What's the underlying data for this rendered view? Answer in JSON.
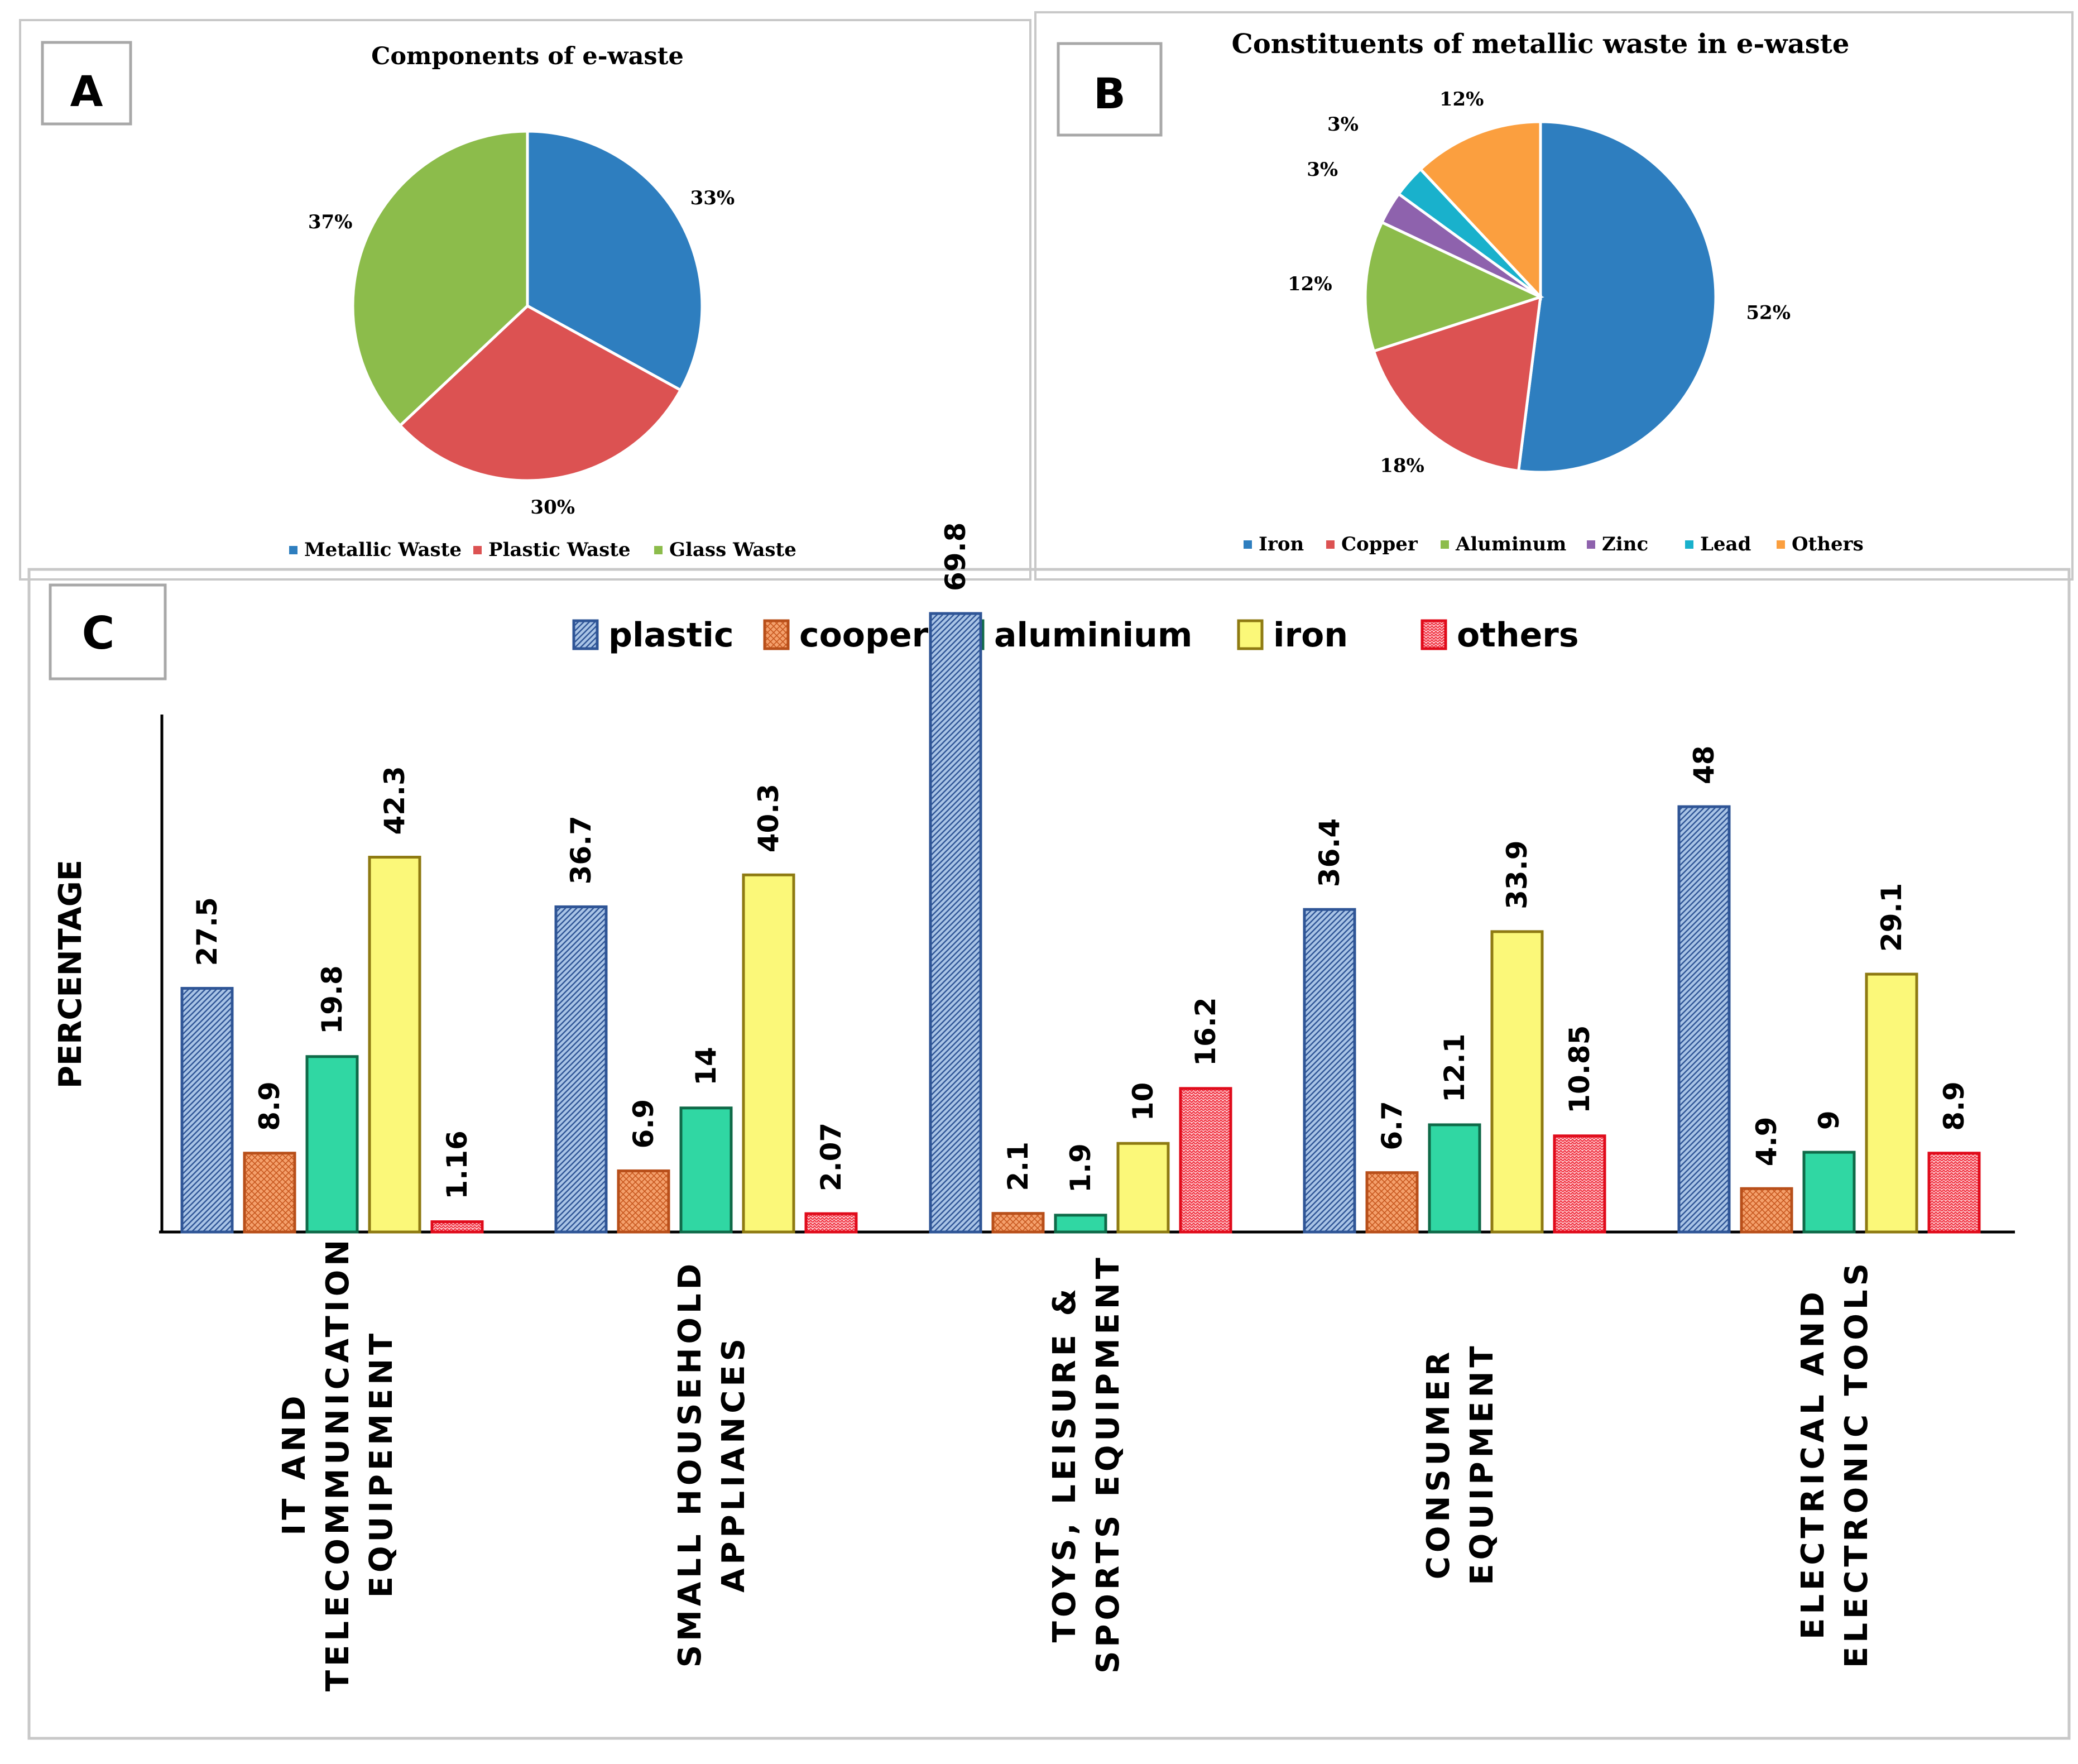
{
  "chart_data": [
    {
      "panel": "A",
      "type": "pie",
      "title": "Components of e-waste",
      "categories": [
        "Metallic Waste",
        "Plastic Waste",
        "Glass Waste"
      ],
      "values": [
        33,
        30,
        37
      ],
      "labels": [
        "33%",
        "30%",
        "37%"
      ],
      "colors": [
        "#2e7ebf",
        "#dc5252",
        "#8cbc4b"
      ],
      "legend": "bottom"
    },
    {
      "panel": "B",
      "type": "pie",
      "title": "Constituents of metallic waste in e-waste",
      "categories": [
        "Iron",
        "Copper",
        "Aluminum",
        "Zinc",
        "Lead",
        "Others"
      ],
      "values": [
        52,
        18,
        12,
        3,
        3,
        12
      ],
      "labels": [
        "52%",
        "18%",
        "12%",
        "3%",
        "3%",
        "12%"
      ],
      "colors": [
        "#2e7ebf",
        "#dc5252",
        "#8cbc4b",
        "#8e62ad",
        "#19b1cc",
        "#fb9f3f"
      ],
      "legend": "bottom"
    },
    {
      "panel": "C",
      "type": "bar",
      "ylabel": "PERCENTAGE",
      "categories": [
        [
          "IT AND",
          "TELECOMMUNICATION",
          "EQUIPEMENT"
        ],
        [
          "SMALL HOUSEHOLD",
          "APPLIANCES"
        ],
        [
          "TOYS, LEISURE &",
          "SPORTS EQUIPMENT"
        ],
        [
          "CONSUMER",
          "EQUIPMENT"
        ],
        [
          "ELECTRICAL AND",
          "ELECTRONIC TOOLS"
        ]
      ],
      "series": [
        {
          "name": "plastic",
          "fill": "#a9c4e6",
          "stroke": "#2f5596",
          "pattern": "diag",
          "values": [
            27.5,
            36.7,
            69.8,
            36.4,
            48
          ],
          "labels": [
            "27.5",
            "36.7",
            "69.8",
            "36.4",
            "48"
          ]
        },
        {
          "name": "cooper",
          "fill": "#f4a06c",
          "stroke": "#b84f1a",
          "pattern": "cross",
          "values": [
            8.9,
            6.9,
            2.1,
            6.7,
            4.9
          ],
          "labels": [
            "8.9",
            "6.9",
            "2.1",
            "6.7",
            "4.9"
          ]
        },
        {
          "name": "aluminium",
          "fill": "#30d7a3",
          "stroke": "#0f6a48",
          "pattern": "none",
          "values": [
            19.8,
            14,
            1.9,
            12.1,
            9
          ],
          "labels": [
            "19.8",
            "14",
            "1.9",
            "12.1",
            "9"
          ]
        },
        {
          "name": "iron",
          "fill": "#fbf879",
          "stroke": "#8e7a12",
          "pattern": "none",
          "values": [
            42.3,
            40.3,
            10,
            33.9,
            29.1
          ],
          "labels": [
            "42.3",
            "40.3",
            "10",
            "33.9",
            "29.1"
          ]
        },
        {
          "name": "others",
          "fill": "#ff9ca4",
          "stroke": "#e00b1b",
          "pattern": "zigzag",
          "values": [
            1.16,
            2.07,
            16.2,
            10.85,
            8.9
          ],
          "labels": [
            "1.16",
            "2.07",
            "16.2",
            "10.85",
            "8.9"
          ]
        }
      ],
      "ylim": [
        0,
        82
      ],
      "legend": "top"
    }
  ],
  "panel_letters": [
    "A",
    "B",
    "C"
  ]
}
